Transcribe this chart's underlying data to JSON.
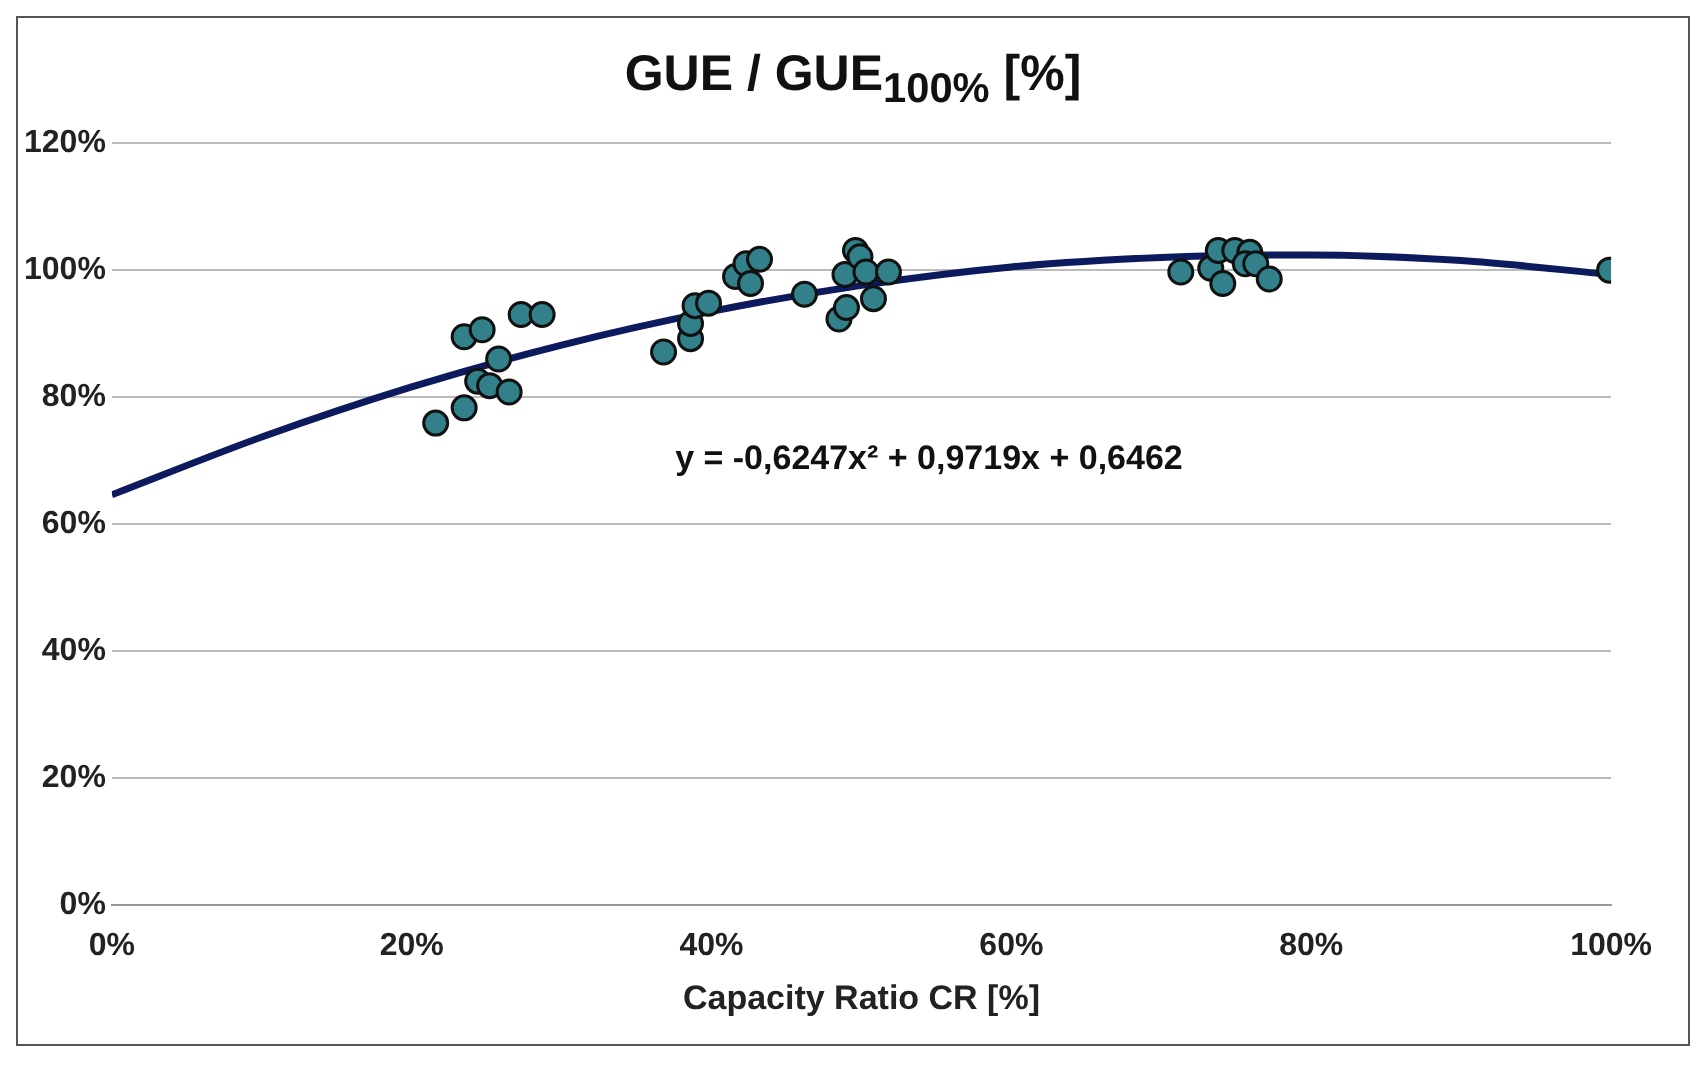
{
  "chart_data": {
    "type": "scatter",
    "title": "GUE / GUE$_{100%}$ [%]",
    "xlabel": "Capacity Ratio CR [%]",
    "xlim": [
      0,
      100
    ],
    "ylim": [
      0,
      120
    ],
    "xticks": [
      {
        "value": 0,
        "label": "0%"
      },
      {
        "value": 20,
        "label": "20%"
      },
      {
        "value": 40,
        "label": "40%"
      },
      {
        "value": 60,
        "label": "60%"
      },
      {
        "value": 80,
        "label": "80%"
      },
      {
        "value": 100,
        "label": "100%"
      }
    ],
    "yticks": [
      {
        "value": 0,
        "label": "0%"
      },
      {
        "value": 20,
        "label": "20%"
      },
      {
        "value": 40,
        "label": "40%"
      },
      {
        "value": 60,
        "label": "60%"
      },
      {
        "value": 80,
        "label": "80%"
      },
      {
        "value": 100,
        "label": "100%"
      },
      {
        "value": 120,
        "label": "120%"
      }
    ],
    "grid": "y",
    "legend": false,
    "annotations": [
      "y = -0,6247x² + 0,9719x + 0,6462"
    ],
    "series": [
      {
        "type": "scatter",
        "color": "#31808a",
        "marker": "circle",
        "x": [
          21.6,
          23.5,
          23.5,
          24.7,
          24.4,
          25.2,
          25.8,
          26.5,
          27.3,
          28.7,
          36.8,
          38.6,
          38.6,
          38.9,
          39.8,
          41.6,
          42.3,
          43.2,
          42.6,
          46.2,
          48.5,
          49.0,
          48.9,
          49.6,
          49.9,
          50.3,
          50.8,
          51.8,
          71.3,
          73.3,
          73.8,
          74.1,
          74.9,
          75.9,
          75.6,
          76.3,
          77.2,
          99.9
        ],
        "values": [
          75.9,
          78.3,
          89.5,
          90.6,
          82.5,
          81.8,
          86.0,
          80.8,
          93.0,
          93.0,
          87.1,
          89.2,
          91.6,
          94.4,
          94.8,
          99.0,
          101.0,
          101.7,
          97.9,
          96.2,
          92.3,
          94.1,
          99.3,
          103.1,
          102.1,
          99.7,
          95.5,
          99.7,
          99.7,
          100.3,
          103.1,
          97.9,
          103.1,
          102.8,
          101.0,
          101.0,
          98.6,
          100.0
        ]
      },
      {
        "type": "line",
        "color": "#0d1b5e",
        "marker": "none",
        "line_style": "solid",
        "x": [
          0,
          10,
          20,
          30,
          40,
          50,
          60,
          70,
          80,
          90,
          100
        ],
        "values": [
          64.6,
          73.7,
          81.6,
          88.2,
          93.5,
          97.6,
          100.5,
          102.0,
          102.4,
          101.5,
          99.3
        ]
      }
    ]
  }
}
